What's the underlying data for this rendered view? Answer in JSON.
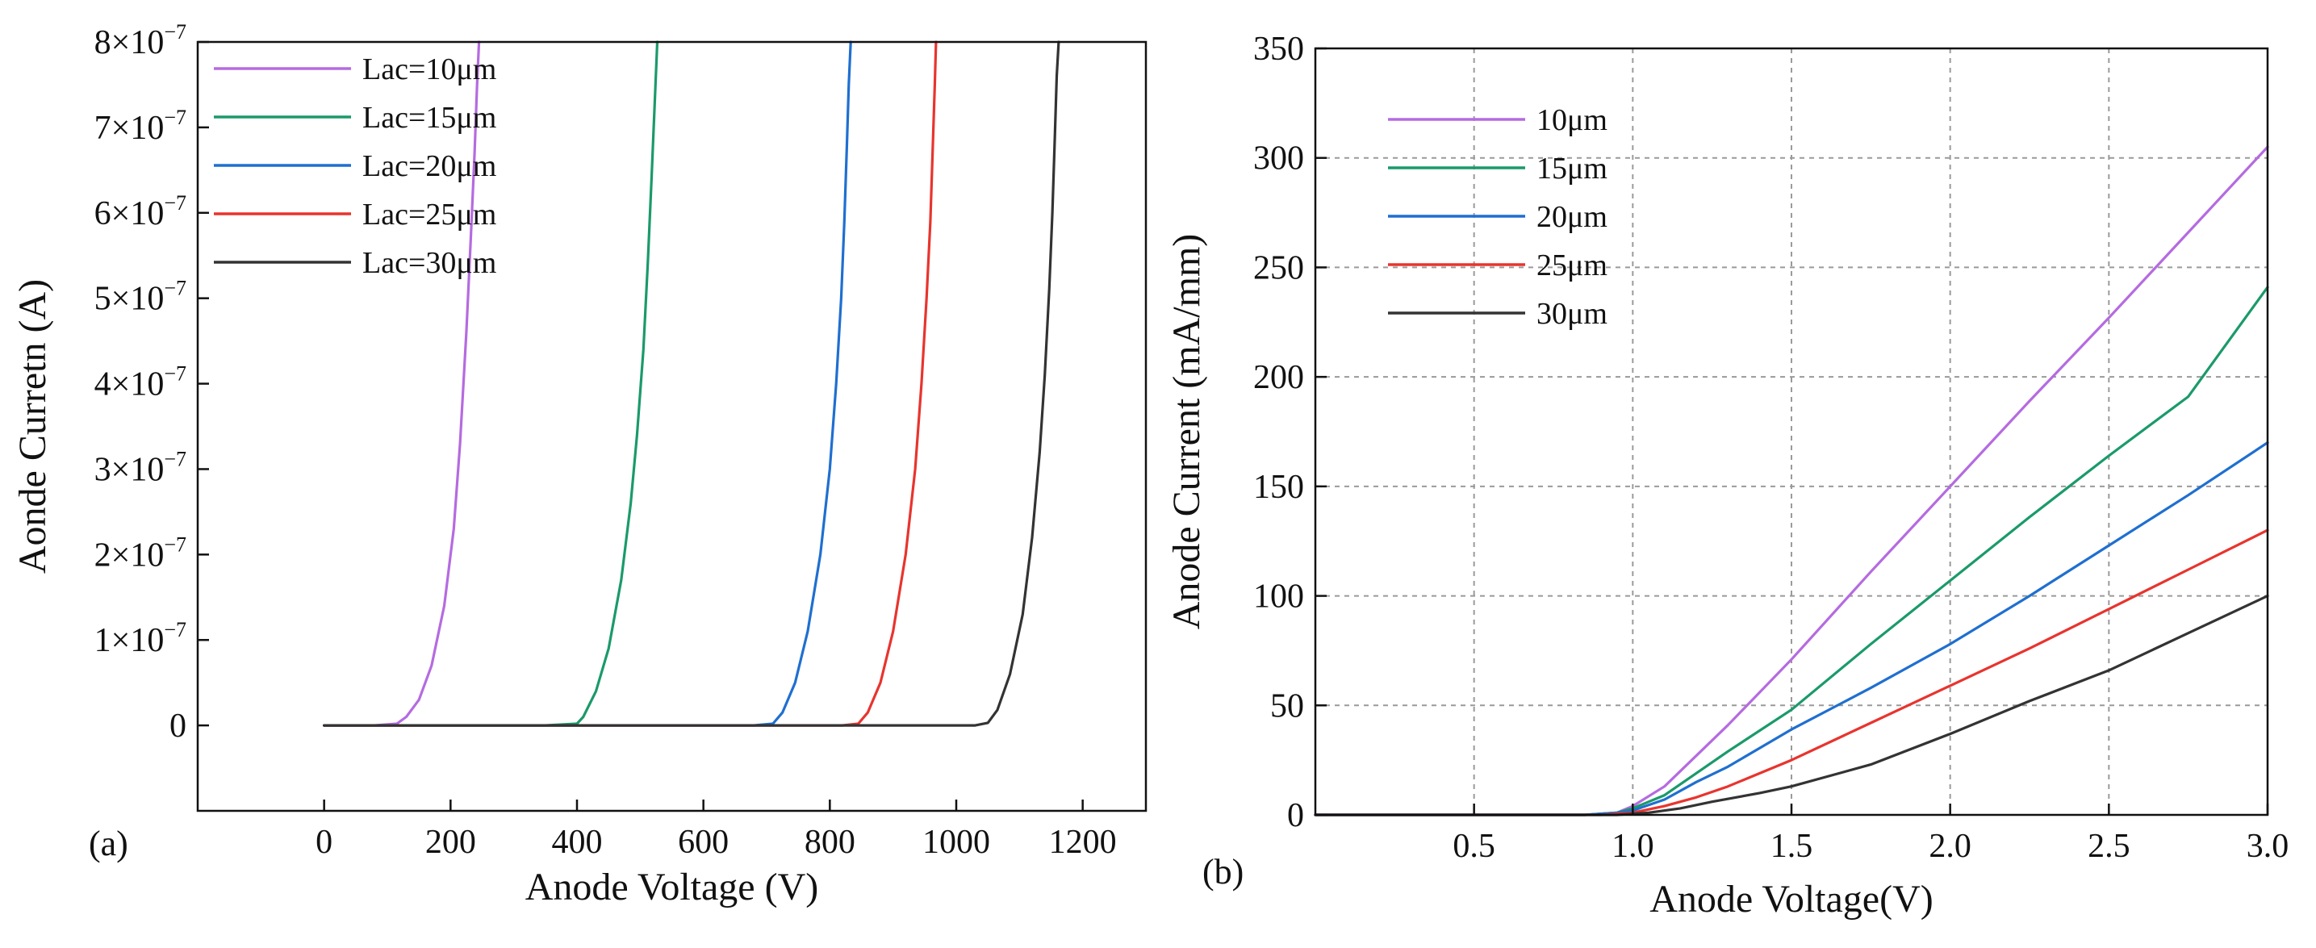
{
  "chart_data": [
    {
      "type": "line",
      "panel_label": "(a)",
      "xlabel": "Anode Voltage (V)",
      "ylabel": "Aonde Curretn (A)",
      "xlim": [
        -200,
        1300
      ],
      "ylim": [
        -1e-07,
        8e-07
      ],
      "x_ticks": [
        0,
        200,
        400,
        600,
        800,
        1000,
        1200
      ],
      "x_tick_labels": [
        "0",
        "200",
        "400",
        "600",
        "800",
        "1000",
        "1200"
      ],
      "y_ticks": [
        0,
        1e-07,
        2e-07,
        3e-07,
        4e-07,
        5e-07,
        6e-07,
        7e-07,
        8e-07
      ],
      "y_tick_labels": [
        {
          "mantissa": "0",
          "exponent": ""
        },
        {
          "mantissa": "1×10",
          "exponent": "−7"
        },
        {
          "mantissa": "2×10",
          "exponent": "−7"
        },
        {
          "mantissa": "3×10",
          "exponent": "−7"
        },
        {
          "mantissa": "4×10",
          "exponent": "−7"
        },
        {
          "mantissa": "5×10",
          "exponent": "−7"
        },
        {
          "mantissa": "6×10",
          "exponent": "−7"
        },
        {
          "mantissa": "7×10",
          "exponent": "−7"
        },
        {
          "mantissa": "8×10",
          "exponent": "−7"
        }
      ],
      "grid": false,
      "legend_position": "top-left",
      "series": [
        {
          "name": "Lac=10μm",
          "color": "#b56be0",
          "x": [
            0,
            80,
            115,
            130,
            150,
            170,
            190,
            205,
            215,
            225,
            232,
            238,
            242,
            245
          ],
          "y": [
            0,
            0,
            2e-09,
            1e-08,
            3e-08,
            7e-08,
            1.4e-07,
            2.3e-07,
            3.3e-07,
            4.6e-07,
            5.7e-07,
            6.7e-07,
            7.5e-07,
            8e-07
          ]
        },
        {
          "name": "Lac=15μm",
          "color": "#1a9a6a",
          "x": [
            0,
            350,
            400,
            410,
            430,
            450,
            470,
            485,
            495,
            505,
            512,
            518,
            523,
            527
          ],
          "y": [
            0,
            0,
            2e-09,
            1e-08,
            4e-08,
            9e-08,
            1.7e-07,
            2.6e-07,
            3.4e-07,
            4.4e-07,
            5.4e-07,
            6.4e-07,
            7.3e-07,
            8e-07
          ]
        },
        {
          "name": "Lac=20μm",
          "color": "#1f6fd0",
          "x": [
            0,
            680,
            710,
            725,
            745,
            765,
            785,
            800,
            810,
            818,
            823,
            827,
            830,
            833
          ],
          "y": [
            0,
            0,
            2e-09,
            1.5e-08,
            5e-08,
            1.1e-07,
            2e-07,
            3e-07,
            4e-07,
            5e-07,
            5.9e-07,
            6.8e-07,
            7.5e-07,
            8e-07
          ]
        },
        {
          "name": "Lac=25μm",
          "color": "#e8342e",
          "x": [
            0,
            820,
            845,
            860,
            880,
            900,
            920,
            935,
            945,
            953,
            959,
            963,
            966,
            968
          ],
          "y": [
            0,
            0,
            2e-09,
            1.5e-08,
            5e-08,
            1.1e-07,
            2e-07,
            3e-07,
            4e-07,
            5e-07,
            5.9e-07,
            6.8e-07,
            7.5e-07,
            8e-07
          ]
        },
        {
          "name": "Lac=30μm",
          "color": "#333333",
          "x": [
            0,
            1030,
            1050,
            1065,
            1085,
            1105,
            1120,
            1132,
            1140,
            1147,
            1152,
            1156,
            1159,
            1162
          ],
          "y": [
            0,
            0,
            3e-09,
            1.8e-08,
            6e-08,
            1.3e-07,
            2.2e-07,
            3.2e-07,
            4.1e-07,
            5.1e-07,
            6e-07,
            6.9e-07,
            7.6e-07,
            8e-07
          ]
        }
      ]
    },
    {
      "type": "line",
      "panel_label": "(b)",
      "xlabel": "Anode Voltage(V)",
      "ylabel": "Anode Current (mA/mm)",
      "xlim": [
        0,
        3.0
      ],
      "ylim": [
        0,
        350
      ],
      "x_ticks": [
        0.5,
        1.0,
        1.5,
        2.0,
        2.5,
        3.0
      ],
      "x_tick_labels": [
        "0.5",
        "1.0",
        "1.5",
        "2.0",
        "2.5",
        "3.0"
      ],
      "y_ticks": [
        0,
        50,
        100,
        150,
        200,
        250,
        300,
        350
      ],
      "y_tick_labels": [
        "0",
        "50",
        "100",
        "150",
        "200",
        "250",
        "300",
        "350"
      ],
      "grid": true,
      "legend_position": "top-left",
      "series": [
        {
          "name": "10μm",
          "color": "#b56be0",
          "x": [
            0,
            0.85,
            0.95,
            1.0,
            1.1,
            1.2,
            1.3,
            1.5,
            1.75,
            2.0,
            2.25,
            2.5,
            2.75,
            3.0
          ],
          "y": [
            0,
            0,
            1,
            4,
            13,
            27,
            41,
            71,
            111,
            150,
            189,
            227,
            266,
            305
          ]
        },
        {
          "name": "15μm",
          "color": "#1a9a6a",
          "x": [
            0,
            0.85,
            0.95,
            1.0,
            1.1,
            1.2,
            1.3,
            1.5,
            1.75,
            2.0,
            2.25,
            2.5,
            2.75,
            3.0
          ],
          "y": [
            0,
            0,
            1,
            3,
            9,
            19,
            29,
            48,
            78,
            107,
            136,
            164,
            191,
            241
          ]
        },
        {
          "name": "20μm",
          "color": "#1f6fd0",
          "x": [
            0,
            0.85,
            0.95,
            1.0,
            1.1,
            1.2,
            1.3,
            1.5,
            1.75,
            2.0,
            2.25,
            2.5,
            2.75,
            3.0
          ],
          "y": [
            0,
            0,
            1,
            2,
            7,
            15,
            22,
            39,
            58,
            78,
            100,
            123,
            146,
            170
          ]
        },
        {
          "name": "25μm",
          "color": "#e8342e",
          "x": [
            0,
            0.9,
            1.0,
            1.1,
            1.2,
            1.3,
            1.5,
            1.75,
            2.0,
            2.25,
            2.5,
            2.75,
            3.0
          ],
          "y": [
            0,
            0,
            1,
            4,
            8,
            13,
            25,
            42,
            59,
            76,
            94,
            112,
            130
          ]
        },
        {
          "name": "30μm",
          "color": "#333333",
          "x": [
            0,
            0.95,
            1.05,
            1.15,
            1.25,
            1.4,
            1.5,
            1.75,
            2.0,
            2.25,
            2.5,
            2.75,
            3.0
          ],
          "y": [
            0,
            0,
            1,
            3,
            6,
            10,
            13,
            23,
            37,
            52,
            66,
            83,
            100
          ]
        }
      ]
    }
  ]
}
